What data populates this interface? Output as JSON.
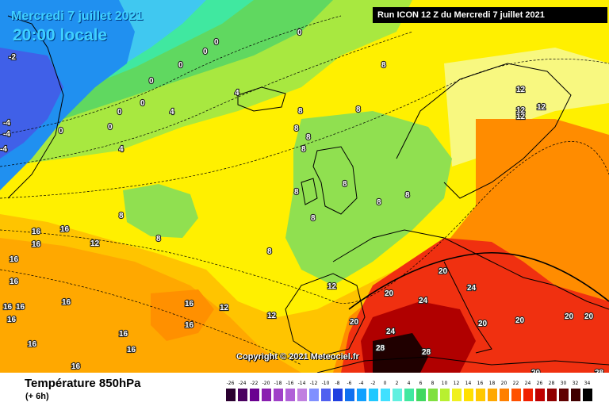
{
  "map": {
    "date_label": "Mercredi 7 juillet 2021",
    "time_label": "20:00 locale",
    "run_label": "Run ICON 12 Z du Mercredi 7 juillet 2021",
    "copyright": "Copyright © 2021 Meteociel.fr",
    "isotherm_labels": [
      {
        "text": "0"
      },
      {
        "text": "0"
      },
      {
        "text": "0"
      },
      {
        "text": "0"
      },
      {
        "text": "0"
      },
      {
        "text": "0"
      },
      {
        "text": "0"
      },
      {
        "text": "0"
      },
      {
        "text": "0"
      },
      {
        "text": "-2"
      },
      {
        "text": "-4"
      },
      {
        "text": "-4"
      },
      {
        "text": "-4"
      },
      {
        "text": "4"
      },
      {
        "text": "4"
      },
      {
        "text": "4"
      },
      {
        "text": "8"
      },
      {
        "text": "8"
      },
      {
        "text": "8"
      },
      {
        "text": "8"
      },
      {
        "text": "8"
      },
      {
        "text": "8"
      },
      {
        "text": "8"
      },
      {
        "text": "8"
      },
      {
        "text": "8"
      },
      {
        "text": "8"
      },
      {
        "text": "8"
      },
      {
        "text": "8"
      },
      {
        "text": "8"
      },
      {
        "text": "8"
      },
      {
        "text": "12"
      },
      {
        "text": "12"
      },
      {
        "text": "12"
      },
      {
        "text": "12"
      },
      {
        "text": "12"
      },
      {
        "text": "12"
      },
      {
        "text": "12"
      },
      {
        "text": "12"
      },
      {
        "text": "16"
      },
      {
        "text": "16"
      },
      {
        "text": "16"
      },
      {
        "text": "16"
      },
      {
        "text": "16"
      },
      {
        "text": "16"
      },
      {
        "text": "16"
      },
      {
        "text": "16"
      },
      {
        "text": "16"
      },
      {
        "text": "16"
      },
      {
        "text": "16"
      },
      {
        "text": "16"
      },
      {
        "text": "16"
      },
      {
        "text": "16"
      },
      {
        "text": "16"
      },
      {
        "text": "20"
      },
      {
        "text": "20"
      },
      {
        "text": "20"
      },
      {
        "text": "20"
      },
      {
        "text": "20"
      },
      {
        "text": "20"
      },
      {
        "text": "20"
      },
      {
        "text": "20"
      },
      {
        "text": "24"
      },
      {
        "text": "24"
      },
      {
        "text": "24"
      },
      {
        "text": "28"
      },
      {
        "text": "28"
      },
      {
        "text": "28"
      }
    ]
  },
  "legend": {
    "title": "Température 850hPa",
    "subtitle": "(+ 6h)",
    "scale_labels": [
      "-26",
      "-24",
      "-22",
      "-20",
      "-18",
      "-16",
      "-14",
      "-12",
      "-10",
      "-8",
      "-6",
      "-4",
      "-2",
      "0",
      "2",
      "4",
      "6",
      "8",
      "10",
      "12",
      "14",
      "16",
      "18",
      "20",
      "22",
      "24",
      "26",
      "28",
      "30",
      "32",
      "34"
    ],
    "scale_colors": [
      "#2a0030",
      "#4a0060",
      "#6a0090",
      "#8a20b0",
      "#a040c8",
      "#b060d8",
      "#c080e0",
      "#8090ff",
      "#5060f0",
      "#2040e0",
      "#1070f0",
      "#10a0ff",
      "#20c8ff",
      "#40e0ff",
      "#60f0e0",
      "#40e8a0",
      "#40d860",
      "#80e040",
      "#b8f030",
      "#f0f020",
      "#ffe000",
      "#ffc800",
      "#ffa800",
      "#ff8000",
      "#ff5000",
      "#f02000",
      "#c00000",
      "#900000",
      "#600000",
      "#400000",
      "#000000"
    ]
  }
}
